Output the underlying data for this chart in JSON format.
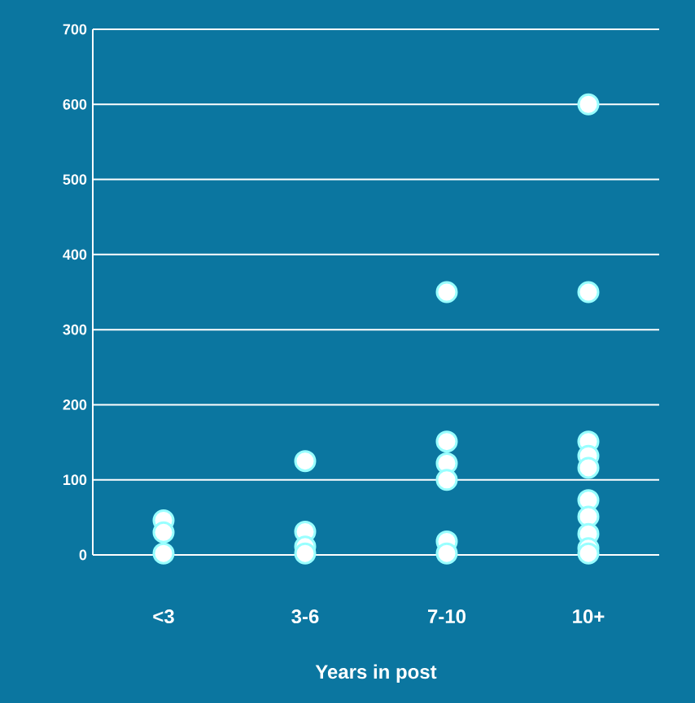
{
  "chart_data": {
    "type": "scatter",
    "xlabel": "Years in post",
    "categories": [
      "<3",
      "3-6",
      "7-10",
      "10+"
    ],
    "series": [
      {
        "color": "#ffffff",
        "x": [
          "<3",
          "<3",
          "<3",
          "3-6",
          "3-6",
          "3-6",
          "3-6",
          "7-10",
          "7-10",
          "7-10",
          "7-10",
          "7-10",
          "7-10",
          "10+",
          "10+",
          "10+",
          "10+",
          "10+",
          "10+",
          "10+",
          "10+",
          "10+",
          "10+"
        ],
        "values": [
          46,
          30,
          2,
          125,
          31,
          11,
          2,
          350,
          151,
          122,
          100,
          18,
          2,
          600,
          350,
          151,
          132,
          116,
          73,
          51,
          28,
          9,
          2
        ]
      }
    ],
    "ylim": [
      0,
      700
    ],
    "yticks": [
      0,
      100,
      200,
      300,
      400,
      500,
      600,
      700
    ],
    "grid": "y",
    "marker": "circle"
  }
}
